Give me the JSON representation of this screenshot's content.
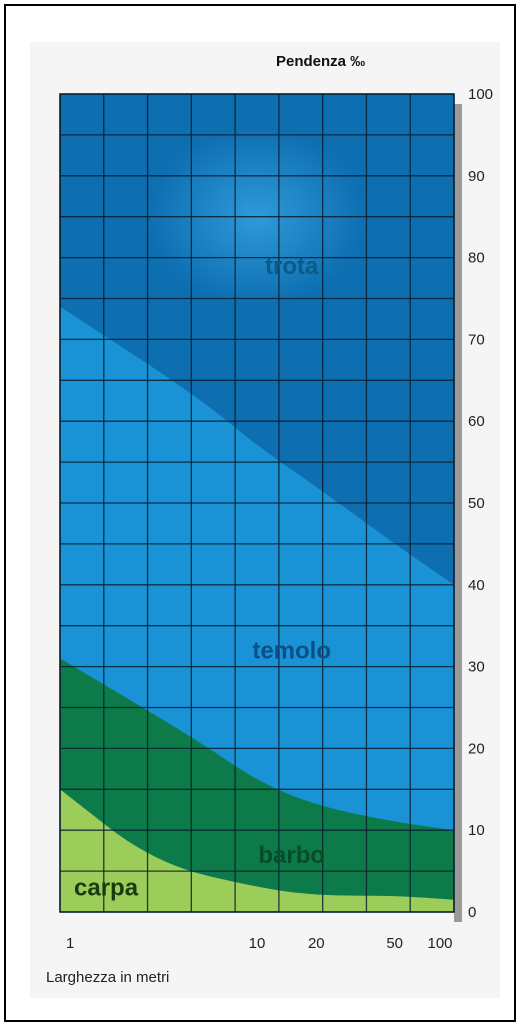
{
  "chart_data": {
    "type": "area",
    "title": "",
    "ylabel": "Pendenza ‰",
    "xlabel": "Larghezza in metri",
    "ylim": [
      0,
      100
    ],
    "y_ticks": [
      "100",
      "90",
      "80",
      "70",
      "60",
      "50",
      "40",
      "30",
      "20",
      "10",
      "0"
    ],
    "x_ticks": [
      {
        "label": "1",
        "x": 1
      },
      {
        "label": "10",
        "x": 10
      },
      {
        "label": "20",
        "x": 20
      },
      {
        "label": "50",
        "x": 50
      },
      {
        "label": "100",
        "x": 100
      }
    ],
    "zones": [
      {
        "name": "trota",
        "color": "#0d6eb0",
        "label_color": "#0a5a8a",
        "label_at": {
          "x": 15,
          "y": 78
        }
      },
      {
        "name": "temolo",
        "color": "#1a93d6",
        "label_color": "#0a4f86",
        "label_at": {
          "x": 15,
          "y": 31
        }
      },
      {
        "name": "barbo",
        "color": "#0d7a4a",
        "label_color": "#064d2c",
        "label_at": {
          "x": 15,
          "y": 6
        }
      },
      {
        "name": "carpa",
        "color": "#9ccc5a",
        "label_color": "#1b3a10",
        "label_at": {
          "x": 2,
          "y": 2
        }
      }
    ],
    "boundaries": [
      {
        "between": [
          "trota",
          "temolo"
        ],
        "points": [
          {
            "x": 1,
            "y": 74
          },
          {
            "x": 5,
            "y": 63
          },
          {
            "x": 10,
            "y": 57
          },
          {
            "x": 20,
            "y": 52
          },
          {
            "x": 50,
            "y": 45
          },
          {
            "x": 100,
            "y": 40
          }
        ]
      },
      {
        "between": [
          "temolo",
          "barbo"
        ],
        "points": [
          {
            "x": 1,
            "y": 31
          },
          {
            "x": 5,
            "y": 21
          },
          {
            "x": 10,
            "y": 16
          },
          {
            "x": 20,
            "y": 13
          },
          {
            "x": 50,
            "y": 11
          },
          {
            "x": 100,
            "y": 10
          }
        ]
      },
      {
        "between": [
          "barbo",
          "carpa"
        ],
        "points": [
          {
            "x": 1,
            "y": 15
          },
          {
            "x": 3,
            "y": 6
          },
          {
            "x": 10,
            "y": 3
          },
          {
            "x": 20,
            "y": 2
          },
          {
            "x": 50,
            "y": 2
          },
          {
            "x": 100,
            "y": 1.5
          }
        ]
      }
    ],
    "grid": true
  }
}
